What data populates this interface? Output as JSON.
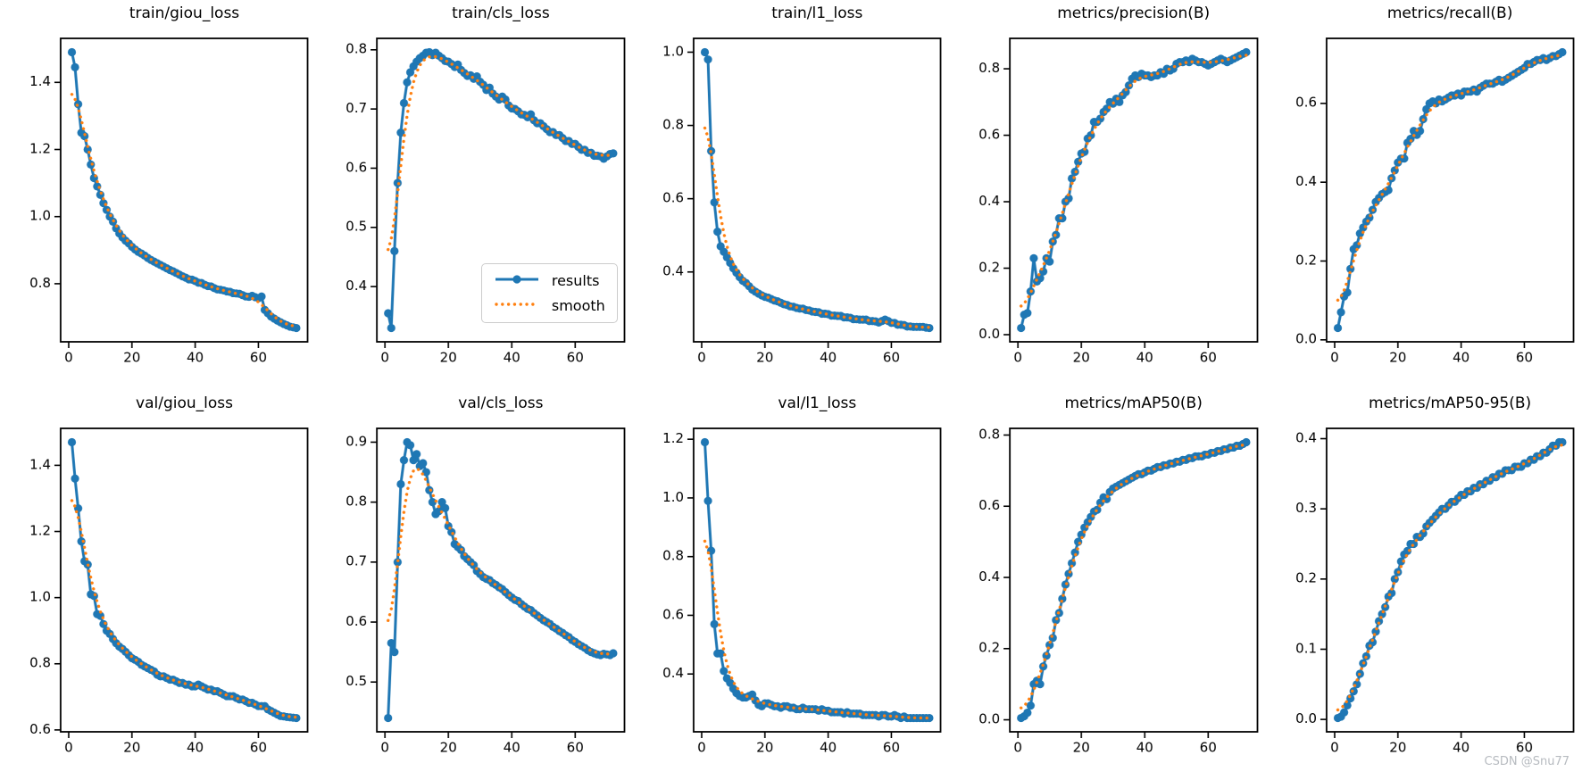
{
  "figure": {
    "watermark": "CSDN @Snu77",
    "legend": {
      "results_label": "results",
      "smooth_label": "smooth"
    }
  },
  "colors": {
    "results": "#1f77b4",
    "smooth": "#ff7f0e",
    "axis": "#000000",
    "legend_border": "#cccccc",
    "watermark": "#b7bbc0"
  },
  "chart_data": [
    {
      "type": "line",
      "title": "train/giou_loss",
      "x_start": 1,
      "xticks": [
        0,
        20,
        40,
        60
      ],
      "yticks": [
        0.8,
        1.0,
        1.2,
        1.4
      ],
      "grid": false,
      "legend": false,
      "smooth": {
        "method": "gaussian",
        "sigma": 3
      },
      "series": [
        {
          "name": "results",
          "values": [
            1.49,
            1.445,
            1.335,
            1.25,
            1.24,
            1.2,
            1.155,
            1.115,
            1.09,
            1.065,
            1.04,
            1.02,
            1.0,
            0.985,
            0.965,
            0.95,
            0.938,
            0.928,
            0.92,
            0.91,
            0.902,
            0.895,
            0.89,
            0.884,
            0.877,
            0.871,
            0.866,
            0.861,
            0.856,
            0.851,
            0.846,
            0.841,
            0.837,
            0.832,
            0.827,
            0.822,
            0.818,
            0.813,
            0.812,
            0.808,
            0.803,
            0.802,
            0.797,
            0.793,
            0.792,
            0.787,
            0.783,
            0.782,
            0.78,
            0.777,
            0.776,
            0.772,
            0.771,
            0.77,
            0.766,
            0.762,
            0.761,
            0.764,
            0.76,
            0.757,
            0.762,
            0.722,
            0.712,
            0.702,
            0.696,
            0.69,
            0.685,
            0.68,
            0.676,
            0.672,
            0.67,
            0.668
          ]
        }
      ]
    },
    {
      "type": "line",
      "title": "train/cls_loss",
      "x_start": 1,
      "xticks": [
        0,
        20,
        40,
        60
      ],
      "yticks": [
        0.4,
        0.5,
        0.6,
        0.7,
        0.8
      ],
      "grid": false,
      "legend": true,
      "smooth": {
        "method": "gaussian",
        "sigma": 3
      },
      "series": [
        {
          "name": "results",
          "values": [
            0.355,
            0.33,
            0.46,
            0.575,
            0.66,
            0.71,
            0.745,
            0.762,
            0.772,
            0.78,
            0.786,
            0.79,
            0.795,
            0.796,
            0.791,
            0.795,
            0.79,
            0.786,
            0.781,
            0.78,
            0.776,
            0.771,
            0.775,
            0.766,
            0.761,
            0.756,
            0.757,
            0.751,
            0.755,
            0.746,
            0.741,
            0.732,
            0.736,
            0.726,
            0.721,
            0.716,
            0.721,
            0.716,
            0.706,
            0.701,
            0.7,
            0.696,
            0.691,
            0.69,
            0.686,
            0.691,
            0.681,
            0.676,
            0.676,
            0.671,
            0.666,
            0.661,
            0.661,
            0.656,
            0.656,
            0.651,
            0.646,
            0.646,
            0.641,
            0.641,
            0.636,
            0.631,
            0.631,
            0.626,
            0.626,
            0.621,
            0.621,
            0.62,
            0.616,
            0.62,
            0.624,
            0.625
          ]
        }
      ]
    },
    {
      "type": "line",
      "title": "train/l1_loss",
      "x_start": 1,
      "xticks": [
        0,
        20,
        40,
        60
      ],
      "yticks": [
        0.4,
        0.6,
        0.8,
        1.0
      ],
      "grid": false,
      "legend": false,
      "smooth": {
        "method": "gaussian",
        "sigma": 3
      },
      "series": [
        {
          "name": "results",
          "values": [
            1.0,
            0.98,
            0.73,
            0.59,
            0.51,
            0.47,
            0.455,
            0.44,
            0.425,
            0.41,
            0.398,
            0.386,
            0.376,
            0.37,
            0.361,
            0.352,
            0.346,
            0.341,
            0.336,
            0.332,
            0.33,
            0.326,
            0.322,
            0.32,
            0.316,
            0.312,
            0.31,
            0.306,
            0.305,
            0.302,
            0.3,
            0.3,
            0.296,
            0.295,
            0.292,
            0.291,
            0.29,
            0.286,
            0.286,
            0.285,
            0.281,
            0.281,
            0.28,
            0.28,
            0.276,
            0.276,
            0.275,
            0.271,
            0.271,
            0.27,
            0.27,
            0.27,
            0.266,
            0.266,
            0.265,
            0.262,
            0.266,
            0.27,
            0.266,
            0.261,
            0.261,
            0.256,
            0.256,
            0.255,
            0.251,
            0.251,
            0.25,
            0.25,
            0.25,
            0.25,
            0.248,
            0.247
          ]
        }
      ]
    },
    {
      "type": "line",
      "title": "metrics/precision(B)",
      "x_start": 1,
      "xticks": [
        0,
        20,
        40,
        60
      ],
      "yticks": [
        0.0,
        0.2,
        0.4,
        0.6,
        0.8
      ],
      "grid": false,
      "legend": false,
      "smooth": {
        "method": "gaussian",
        "sigma": 3
      },
      "series": [
        {
          "name": "results",
          "values": [
            0.02,
            0.06,
            0.065,
            0.13,
            0.23,
            0.16,
            0.17,
            0.19,
            0.23,
            0.22,
            0.28,
            0.3,
            0.35,
            0.35,
            0.4,
            0.41,
            0.47,
            0.49,
            0.52,
            0.545,
            0.55,
            0.59,
            0.6,
            0.64,
            0.64,
            0.65,
            0.67,
            0.68,
            0.7,
            0.695,
            0.71,
            0.7,
            0.72,
            0.73,
            0.75,
            0.77,
            0.78,
            0.775,
            0.785,
            0.78,
            0.78,
            0.775,
            0.78,
            0.78,
            0.79,
            0.785,
            0.8,
            0.795,
            0.8,
            0.815,
            0.82,
            0.82,
            0.825,
            0.82,
            0.83,
            0.825,
            0.82,
            0.82,
            0.815,
            0.81,
            0.815,
            0.82,
            0.825,
            0.83,
            0.825,
            0.82,
            0.825,
            0.83,
            0.835,
            0.84,
            0.845,
            0.85
          ]
        }
      ]
    },
    {
      "type": "line",
      "title": "metrics/recall(B)",
      "x_start": 1,
      "xticks": [
        0,
        20,
        40,
        60
      ],
      "yticks": [
        0.0,
        0.2,
        0.4,
        0.6
      ],
      "grid": false,
      "legend": false,
      "smooth": {
        "method": "gaussian",
        "sigma": 3
      },
      "series": [
        {
          "name": "results",
          "values": [
            0.03,
            0.07,
            0.11,
            0.12,
            0.18,
            0.23,
            0.24,
            0.27,
            0.285,
            0.3,
            0.31,
            0.33,
            0.35,
            0.36,
            0.37,
            0.375,
            0.38,
            0.41,
            0.43,
            0.45,
            0.46,
            0.46,
            0.5,
            0.51,
            0.53,
            0.52,
            0.53,
            0.56,
            0.585,
            0.6,
            0.605,
            0.6,
            0.61,
            0.605,
            0.61,
            0.615,
            0.62,
            0.62,
            0.625,
            0.62,
            0.63,
            0.63,
            0.63,
            0.635,
            0.63,
            0.64,
            0.645,
            0.65,
            0.65,
            0.65,
            0.655,
            0.66,
            0.655,
            0.66,
            0.665,
            0.67,
            0.675,
            0.68,
            0.685,
            0.69,
            0.7,
            0.7,
            0.705,
            0.71,
            0.71,
            0.715,
            0.71,
            0.715,
            0.72,
            0.72,
            0.725,
            0.73
          ]
        }
      ]
    },
    {
      "type": "line",
      "title": "val/giou_loss",
      "x_start": 1,
      "xticks": [
        0,
        20,
        40,
        60
      ],
      "yticks": [
        0.6,
        0.8,
        1.0,
        1.2,
        1.4
      ],
      "grid": false,
      "legend": false,
      "smooth": {
        "method": "gaussian",
        "sigma": 3
      },
      "series": [
        {
          "name": "results",
          "values": [
            1.47,
            1.36,
            1.27,
            1.17,
            1.11,
            1.1,
            1.01,
            1.005,
            0.95,
            0.945,
            0.92,
            0.9,
            0.89,
            0.875,
            0.862,
            0.852,
            0.845,
            0.836,
            0.826,
            0.817,
            0.812,
            0.806,
            0.797,
            0.792,
            0.787,
            0.782,
            0.777,
            0.767,
            0.762,
            0.762,
            0.757,
            0.752,
            0.752,
            0.747,
            0.742,
            0.742,
            0.737,
            0.737,
            0.732,
            0.732,
            0.737,
            0.732,
            0.727,
            0.722,
            0.722,
            0.717,
            0.717,
            0.712,
            0.707,
            0.702,
            0.702,
            0.702,
            0.697,
            0.692,
            0.692,
            0.687,
            0.682,
            0.682,
            0.677,
            0.672,
            0.672,
            0.672,
            0.662,
            0.657,
            0.652,
            0.647,
            0.642,
            0.641,
            0.639,
            0.638,
            0.637,
            0.636
          ]
        }
      ]
    },
    {
      "type": "line",
      "title": "val/cls_loss",
      "x_start": 1,
      "xticks": [
        0,
        20,
        40,
        60
      ],
      "yticks": [
        0.5,
        0.6,
        0.7,
        0.8,
        0.9
      ],
      "grid": false,
      "legend": false,
      "smooth": {
        "method": "gaussian",
        "sigma": 3
      },
      "series": [
        {
          "name": "results",
          "values": [
            0.44,
            0.565,
            0.55,
            0.7,
            0.83,
            0.87,
            0.9,
            0.895,
            0.87,
            0.88,
            0.86,
            0.865,
            0.85,
            0.82,
            0.8,
            0.78,
            0.785,
            0.8,
            0.79,
            0.76,
            0.75,
            0.73,
            0.725,
            0.72,
            0.71,
            0.705,
            0.7,
            0.695,
            0.685,
            0.68,
            0.675,
            0.672,
            0.67,
            0.665,
            0.662,
            0.658,
            0.655,
            0.65,
            0.645,
            0.641,
            0.637,
            0.635,
            0.63,
            0.626,
            0.622,
            0.62,
            0.615,
            0.611,
            0.607,
            0.603,
            0.6,
            0.597,
            0.592,
            0.589,
            0.585,
            0.582,
            0.578,
            0.575,
            0.57,
            0.567,
            0.563,
            0.56,
            0.557,
            0.553,
            0.55,
            0.548,
            0.546,
            0.545,
            0.547,
            0.546,
            0.545,
            0.548
          ]
        }
      ]
    },
    {
      "type": "line",
      "title": "val/l1_loss",
      "x_start": 1,
      "xticks": [
        0,
        20,
        40,
        60
      ],
      "yticks": [
        0.4,
        0.6,
        0.8,
        1.0,
        1.2
      ],
      "grid": false,
      "legend": false,
      "smooth": {
        "method": "gaussian",
        "sigma": 3
      },
      "series": [
        {
          "name": "results",
          "values": [
            1.19,
            0.99,
            0.82,
            0.57,
            0.47,
            0.47,
            0.41,
            0.385,
            0.37,
            0.35,
            0.335,
            0.325,
            0.32,
            0.32,
            0.325,
            0.33,
            0.31,
            0.295,
            0.29,
            0.3,
            0.3,
            0.295,
            0.29,
            0.29,
            0.285,
            0.29,
            0.29,
            0.285,
            0.285,
            0.28,
            0.28,
            0.285,
            0.28,
            0.28,
            0.28,
            0.28,
            0.275,
            0.28,
            0.275,
            0.275,
            0.27,
            0.27,
            0.27,
            0.27,
            0.265,
            0.27,
            0.265,
            0.265,
            0.265,
            0.265,
            0.26,
            0.26,
            0.26,
            0.26,
            0.26,
            0.255,
            0.26,
            0.26,
            0.255,
            0.255,
            0.26,
            0.255,
            0.25,
            0.255,
            0.25,
            0.25,
            0.25,
            0.25,
            0.25,
            0.25,
            0.25,
            0.25
          ]
        }
      ]
    },
    {
      "type": "line",
      "title": "metrics/mAP50(B)",
      "x_start": 1,
      "xticks": [
        0,
        20,
        40,
        60
      ],
      "yticks": [
        0.0,
        0.2,
        0.4,
        0.6,
        0.8
      ],
      "grid": false,
      "legend": false,
      "smooth": {
        "method": "gaussian",
        "sigma": 3
      },
      "series": [
        {
          "name": "results",
          "values": [
            0.005,
            0.01,
            0.02,
            0.04,
            0.1,
            0.11,
            0.1,
            0.15,
            0.18,
            0.21,
            0.23,
            0.28,
            0.3,
            0.34,
            0.38,
            0.41,
            0.44,
            0.47,
            0.5,
            0.52,
            0.54,
            0.555,
            0.57,
            0.585,
            0.59,
            0.61,
            0.625,
            0.62,
            0.64,
            0.65,
            0.655,
            0.66,
            0.665,
            0.67,
            0.675,
            0.68,
            0.685,
            0.69,
            0.69,
            0.695,
            0.7,
            0.7,
            0.705,
            0.71,
            0.71,
            0.715,
            0.715,
            0.72,
            0.72,
            0.725,
            0.725,
            0.73,
            0.73,
            0.735,
            0.735,
            0.74,
            0.74,
            0.74,
            0.745,
            0.745,
            0.75,
            0.75,
            0.755,
            0.755,
            0.76,
            0.76,
            0.765,
            0.765,
            0.77,
            0.77,
            0.775,
            0.78
          ]
        }
      ]
    },
    {
      "type": "line",
      "title": "metrics/mAP50-95(B)",
      "x_start": 1,
      "xticks": [
        0,
        20,
        40,
        60
      ],
      "yticks": [
        0.0,
        0.1,
        0.2,
        0.3,
        0.4
      ],
      "grid": false,
      "legend": false,
      "smooth": {
        "method": "gaussian",
        "sigma": 3
      },
      "series": [
        {
          "name": "results",
          "values": [
            0.002,
            0.004,
            0.01,
            0.02,
            0.03,
            0.04,
            0.05,
            0.065,
            0.08,
            0.09,
            0.105,
            0.11,
            0.125,
            0.14,
            0.15,
            0.16,
            0.175,
            0.18,
            0.2,
            0.21,
            0.225,
            0.235,
            0.24,
            0.25,
            0.25,
            0.26,
            0.26,
            0.265,
            0.275,
            0.28,
            0.285,
            0.29,
            0.295,
            0.3,
            0.3,
            0.305,
            0.31,
            0.31,
            0.315,
            0.32,
            0.32,
            0.325,
            0.325,
            0.33,
            0.33,
            0.335,
            0.335,
            0.34,
            0.34,
            0.345,
            0.345,
            0.35,
            0.35,
            0.355,
            0.355,
            0.355,
            0.36,
            0.36,
            0.36,
            0.365,
            0.365,
            0.37,
            0.37,
            0.375,
            0.375,
            0.38,
            0.38,
            0.385,
            0.39,
            0.39,
            0.395,
            0.395
          ]
        }
      ]
    }
  ]
}
